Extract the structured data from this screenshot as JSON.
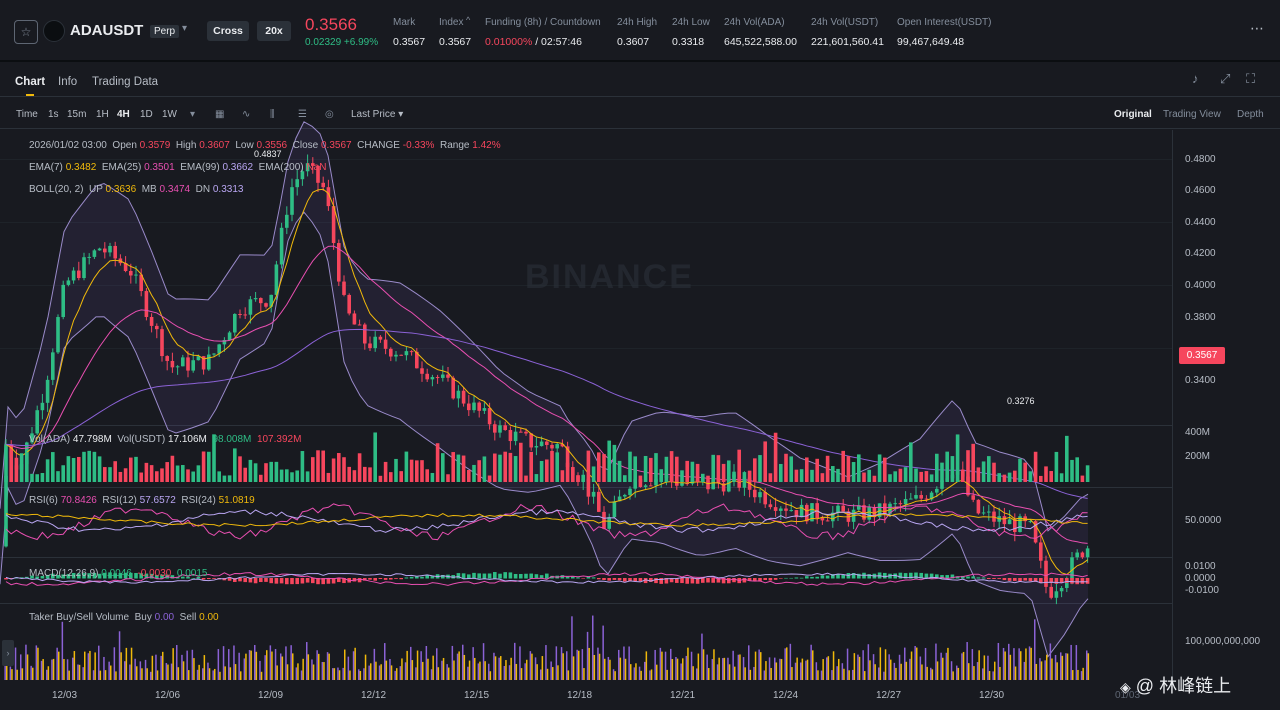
{
  "header": {
    "symbol": "ADAUSDT",
    "contract_type": "Perp",
    "margin_mode": "Cross",
    "leverage": "20x",
    "last_price": "0.3566",
    "change": "0.02329 +6.99%",
    "stats": [
      {
        "label": "Mark",
        "value": "0.3567"
      },
      {
        "label": "Index",
        "value": "0.3567"
      },
      {
        "label": "Funding (8h) / Countdown",
        "value": "0.01000%",
        "value2": "/ 02:57:46"
      },
      {
        "label": "24h High",
        "value": "0.3607"
      },
      {
        "label": "24h Low",
        "value": "0.3318"
      },
      {
        "label": "24h Vol(ADA)",
        "value": "645,522,588.00"
      },
      {
        "label": "24h Vol(USDT)",
        "value": "221,601,560.41"
      },
      {
        "label": "Open Interest(USDT)",
        "value": "99,467,649.48"
      }
    ]
  },
  "tabs": [
    "Chart",
    "Info",
    "Trading Data"
  ],
  "toolbar": {
    "time_label": "Time",
    "intervals": [
      "1s",
      "15m",
      "1H",
      "4H",
      "1D",
      "1W"
    ],
    "active_interval": "4H",
    "price_type": "Last Price",
    "views": [
      "Original",
      "Trading View",
      "Depth"
    ]
  },
  "ohlc": {
    "date": "2026/01/02 03:00",
    "open_label": "Open",
    "open": "0.3579",
    "high_label": "High",
    "high": "0.3607",
    "low_label": "Low",
    "low": "0.3556",
    "close_label": "Close",
    "close": "0.3567",
    "change_label": "CHANGE",
    "change": "-0.33%",
    "range_label": "Range",
    "range": "1.42%"
  },
  "ema": {
    "l7": "EMA(7)",
    "v7": "0.3482",
    "l25": "EMA(25)",
    "v25": "0.3501",
    "l99": "EMA(99)",
    "v99": "0.3662",
    "l200": "EMA(200)",
    "v200": "NaN"
  },
  "boll": {
    "label": "BOLL(20, 2)",
    "up_l": "UP",
    "up": "0.3636",
    "mb_l": "MB",
    "mb": "0.3474",
    "dn_l": "DN",
    "dn": "0.3313"
  },
  "price_axis": [
    "0.4800",
    "0.4600",
    "0.4400",
    "0.4200",
    "0.4000",
    "0.3800",
    "0.3400"
  ],
  "current_price_tag": "0.3567",
  "high_marker": "0.4837",
  "low_marker": "0.3276",
  "watermark": "BINANCE",
  "volume": {
    "label": "Vol(ADA)",
    "ada": "47.798M",
    "usdt_label": "Vol(USDT)",
    "usdt": "17.106M",
    "v2": "98.008M",
    "v3": "107.392M",
    "axis": [
      "400M",
      "200M"
    ]
  },
  "rsi": {
    "l6": "RSI(6)",
    "v6": "70.8426",
    "l12": "RSI(12)",
    "v12": "57.6572",
    "l24": "RSI(24)",
    "v24": "51.0819",
    "axis": "50.0000"
  },
  "macd": {
    "label": "MACD(12,26,9)",
    "v1": "0.0046",
    "v2": "-0.0030",
    "v3": "0.0015",
    "axis": [
      "0.0100",
      "0.0000",
      "-0.0100"
    ]
  },
  "taker": {
    "label": "Taker Buy/Sell Volume",
    "buy_l": "Buy",
    "buy": "0.00",
    "sell_l": "Sell",
    "sell": "0.00",
    "axis": "100,000,000,000"
  },
  "x_axis": [
    "12/03",
    "12/06",
    "12/09",
    "12/12",
    "12/15",
    "12/18",
    "12/21",
    "12/24",
    "12/27",
    "12/30",
    "01/03"
  ],
  "source_watermark": "@ 林峰链上",
  "colors": {
    "up": "#2ebd85",
    "down": "#f6465d",
    "ema7": "#f0b90b",
    "ema25": "#e84fb1",
    "ema99": "#8b62d6",
    "boll": "#b9a6f2"
  }
}
